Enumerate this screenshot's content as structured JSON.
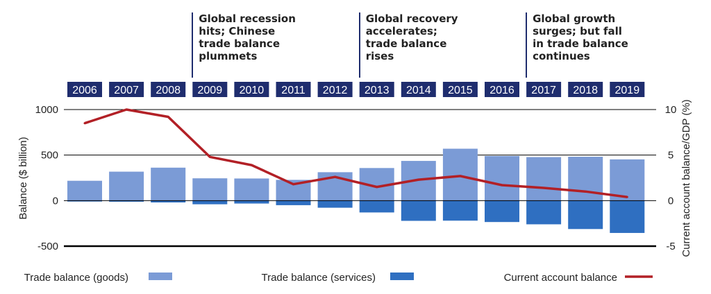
{
  "annotations": [
    {
      "text": "Global recession\nhits; Chinese\ntrade balance\nplummets",
      "at_year": "2009"
    },
    {
      "text": "Global recovery\naccelerates;\ntrade balance\nrises",
      "at_year": "2013"
    },
    {
      "text": "Global growth\nsurges; but fall\nin trade balance\ncontinues",
      "at_year": "2017"
    }
  ],
  "chart_data": {
    "type": "bar",
    "categories": [
      "2006",
      "2007",
      "2008",
      "2009",
      "2010",
      "2011",
      "2012",
      "2013",
      "2014",
      "2015",
      "2016",
      "2017",
      "2018",
      "2019"
    ],
    "ylabel": "Balance ($ billion)",
    "y2label": "Current account balance/GDP (%)",
    "ylim": [
      -500,
      1000
    ],
    "y2lim": [
      -5,
      10
    ],
    "yticks": [
      "1000",
      "500",
      "0",
      "-500"
    ],
    "y2ticks": [
      "10",
      "5",
      "0",
      "-5"
    ],
    "grid": true,
    "series": [
      {
        "name": "Trade balance (goods)",
        "type": "bar",
        "color": "#7b9bd6",
        "values": [
          218,
          318,
          362,
          245,
          243,
          228,
          312,
          358,
          436,
          570,
          490,
          478,
          482,
          453
        ]
      },
      {
        "name": "Trade balance (services)",
        "type": "bar",
        "color": "#2f6fc1",
        "values": [
          -10,
          -12,
          -20,
          -40,
          -32,
          -50,
          -78,
          -130,
          -222,
          -220,
          -235,
          -260,
          -312,
          -355
        ]
      },
      {
        "name": "Current account balance",
        "type": "line",
        "axis": "right",
        "color": "#b22026",
        "values": [
          8.5,
          10.0,
          9.2,
          4.8,
          3.9,
          1.8,
          2.6,
          1.5,
          2.3,
          2.7,
          1.7,
          1.4,
          1.0,
          0.4
        ]
      }
    ],
    "legend": "bottom"
  }
}
